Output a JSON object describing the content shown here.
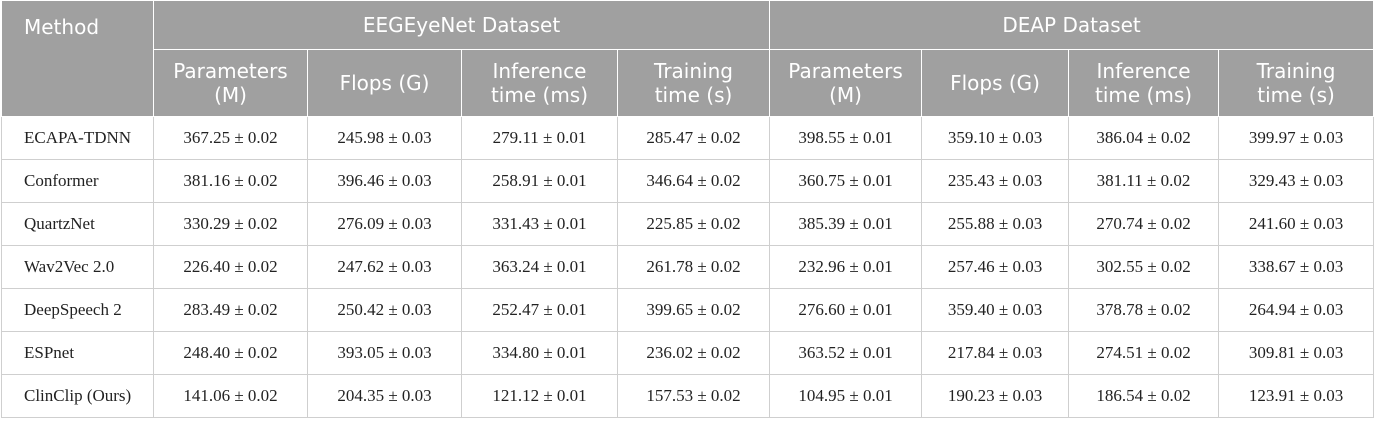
{
  "table": {
    "header": {
      "method": "Method",
      "groups": [
        {
          "title": "EEGEyeNet Dataset",
          "columns": [
            "Parameters\n(M)",
            "Flops (G)",
            "Inference\ntime (ms)",
            "Training\ntime (s)"
          ]
        },
        {
          "title": "DEAP Dataset",
          "columns": [
            "Parameters\n(M)",
            "Flops (G)",
            "Inference\ntime (ms)",
            "Training\ntime (s)"
          ]
        }
      ]
    },
    "rows": [
      [
        "ECAPA-TDNN",
        "367.25 ± 0.02",
        "245.98 ± 0.03",
        "279.11 ± 0.01",
        "285.47 ± 0.02",
        "398.55 ± 0.01",
        "359.10 ± 0.03",
        "386.04 ± 0.02",
        "399.97 ± 0.03"
      ],
      [
        "Conformer",
        "381.16 ± 0.02",
        "396.46 ± 0.03",
        "258.91 ± 0.01",
        "346.64 ± 0.02",
        "360.75 ± 0.01",
        "235.43 ± 0.03",
        "381.11 ± 0.02",
        "329.43 ± 0.03"
      ],
      [
        "QuartzNet",
        "330.29 ± 0.02",
        "276.09 ± 0.03",
        "331.43 ± 0.01",
        "225.85 ± 0.02",
        "385.39 ± 0.01",
        "255.88 ± 0.03",
        "270.74 ± 0.02",
        "241.60 ± 0.03"
      ],
      [
        "Wav2Vec 2.0",
        "226.40 ± 0.02",
        "247.62 ± 0.03",
        "363.24 ± 0.01",
        "261.78 ± 0.02",
        "232.96 ± 0.01",
        "257.46 ± 0.03",
        "302.55 ± 0.02",
        "338.67 ± 0.03"
      ],
      [
        "DeepSpeech 2",
        "283.49 ± 0.02",
        "250.42 ± 0.03",
        "252.47 ± 0.01",
        "399.65 ± 0.02",
        "276.60 ± 0.01",
        "359.40 ± 0.03",
        "378.78 ± 0.02",
        "264.94 ± 0.03"
      ],
      [
        "ESPnet",
        "248.40 ± 0.02",
        "393.05 ± 0.03",
        "334.80 ± 0.01",
        "236.02 ± 0.02",
        "363.52 ± 0.01",
        "217.84 ± 0.03",
        "274.51 ± 0.02",
        "309.81 ± 0.03"
      ],
      [
        "ClinClip (Ours)",
        "141.06 ± 0.02",
        "204.35 ± 0.03",
        "121.12 ± 0.01",
        "157.53 ± 0.02",
        "104.95 ± 0.01",
        "190.23 ± 0.03",
        "186.54 ± 0.02",
        "123.91 ± 0.03"
      ]
    ]
  }
}
